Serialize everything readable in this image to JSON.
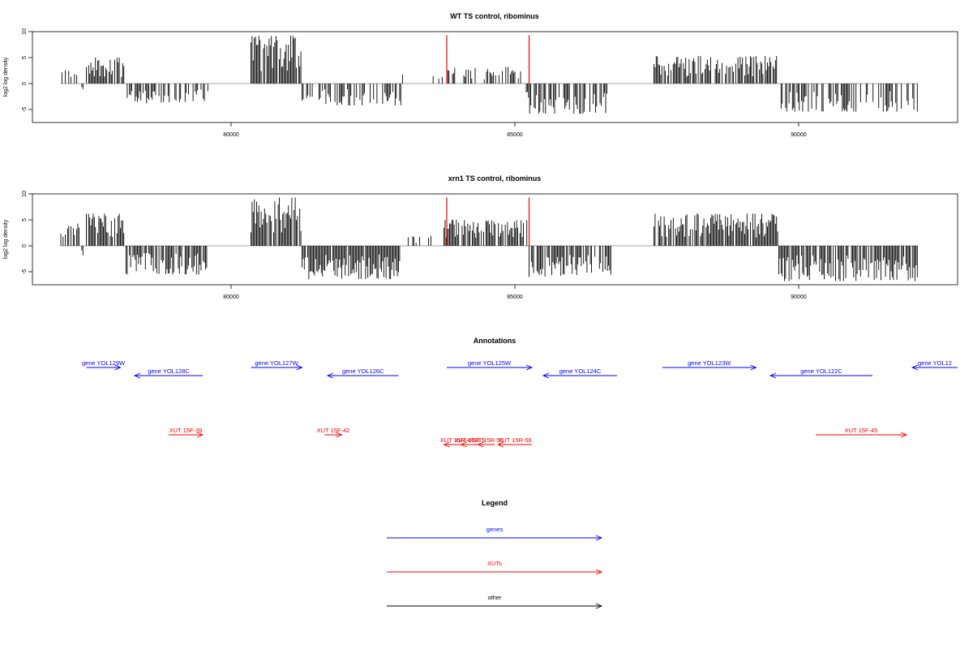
{
  "chart_data": [
    {
      "type": "bar",
      "title": "WT TS control, ribominus",
      "xlabel": "",
      "ylabel": "log2 log density",
      "xlim": [
        76500,
        92800
      ],
      "ylim": [
        -7.5,
        10
      ],
      "xticks": [
        80000,
        85000,
        90000
      ],
      "yticks": [
        -5,
        0,
        5,
        10
      ],
      "xtick_labels": [
        "80000",
        "85000",
        "90000"
      ],
      "ytick_labels": [
        "-5",
        "0",
        "5",
        "10"
      ],
      "baseline_range": [
        77000,
        92100
      ],
      "segments": [
        {
          "from": 77000,
          "to": 77350,
          "sign": 1,
          "max": 2.8,
          "density": 0.35
        },
        {
          "from": 77350,
          "to": 77450,
          "sign": -1,
          "max": 1.6,
          "density": 0.4
        },
        {
          "from": 77450,
          "to": 78150,
          "sign": 1,
          "max": 5.0,
          "density": 0.8
        },
        {
          "from": 78150,
          "to": 79600,
          "sign": -1,
          "max": 3.8,
          "density": 0.55
        },
        {
          "from": 79600,
          "to": 80350,
          "sign": 0,
          "max": 0,
          "density": 0
        },
        {
          "from": 80350,
          "to": 81250,
          "sign": 1,
          "max": 9.2,
          "density": 0.85
        },
        {
          "from": 81250,
          "to": 83000,
          "sign": -1,
          "max": 4.2,
          "density": 0.55
        },
        {
          "from": 83000,
          "to": 83750,
          "sign": 1,
          "max": 1.8,
          "density": 0.15
        },
        {
          "from": 83800,
          "to": 85200,
          "sign": 1,
          "max": 3.2,
          "density": 0.45
        },
        {
          "from": 85200,
          "to": 86650,
          "sign": -1,
          "max": 5.8,
          "density": 0.65
        },
        {
          "from": 86650,
          "to": 87450,
          "sign": 0,
          "max": 0,
          "density": 0
        },
        {
          "from": 87450,
          "to": 89650,
          "sign": 1,
          "max": 5.3,
          "density": 0.75
        },
        {
          "from": 89650,
          "to": 92100,
          "sign": -1,
          "max": 5.4,
          "density": 0.55
        }
      ],
      "highlights": [
        {
          "x": 83800,
          "y": 9.3,
          "color": "#ff0000"
        },
        {
          "x": 85250,
          "y": 9.3,
          "color": "#ff0000"
        }
      ]
    },
    {
      "type": "bar",
      "title": "xrn1 TS control, ribominus",
      "xlabel": "",
      "ylabel": "log2 log density",
      "xlim": [
        76500,
        92800
      ],
      "ylim": [
        -7.5,
        10
      ],
      "xticks": [
        80000,
        85000,
        90000
      ],
      "yticks": [
        -5,
        0,
        5,
        10
      ],
      "xtick_labels": [
        "80000",
        "85000",
        "90000"
      ],
      "ytick_labels": [
        "-5",
        "0",
        "5",
        "10"
      ],
      "baseline_range": [
        77000,
        92100
      ],
      "segments": [
        {
          "from": 77000,
          "to": 77350,
          "sign": 1,
          "max": 4.4,
          "density": 0.6
        },
        {
          "from": 77350,
          "to": 77450,
          "sign": -1,
          "max": 2.0,
          "density": 0.4
        },
        {
          "from": 77450,
          "to": 78150,
          "sign": 1,
          "max": 6.2,
          "density": 0.85
        },
        {
          "from": 78150,
          "to": 79600,
          "sign": -1,
          "max": 5.5,
          "density": 0.8
        },
        {
          "from": 79600,
          "to": 80350,
          "sign": 0,
          "max": 0,
          "density": 0
        },
        {
          "from": 80350,
          "to": 81250,
          "sign": 1,
          "max": 9.3,
          "density": 0.9
        },
        {
          "from": 81250,
          "to": 83000,
          "sign": -1,
          "max": 6.4,
          "density": 0.9
        },
        {
          "from": 83000,
          "to": 83750,
          "sign": 1,
          "max": 2.0,
          "density": 0.2
        },
        {
          "from": 83750,
          "to": 85250,
          "sign": 1,
          "max": 5.0,
          "density": 0.85
        },
        {
          "from": 85250,
          "to": 86700,
          "sign": -1,
          "max": 6.0,
          "density": 0.8
        },
        {
          "from": 86700,
          "to": 87450,
          "sign": 0,
          "max": 0,
          "density": 0
        },
        {
          "from": 87450,
          "to": 89650,
          "sign": 1,
          "max": 6.2,
          "density": 0.9
        },
        {
          "from": 89650,
          "to": 92100,
          "sign": -1,
          "max": 6.8,
          "density": 0.85
        }
      ],
      "highlights": [
        {
          "x": 83800,
          "y": 9.3,
          "color": "#ff0000"
        },
        {
          "x": 85250,
          "y": 9.3,
          "color": "#ff0000"
        }
      ]
    }
  ],
  "annotations": {
    "title": "Annotations",
    "genes_color": "#0000ff",
    "xuts_color": "#ff0000",
    "genes": [
      {
        "label": "gene YOL129W",
        "start": 77450,
        "end": 78050,
        "dir": "+"
      },
      {
        "label": "gene YOL128C",
        "start": 78300,
        "end": 79500,
        "dir": "-"
      },
      {
        "label": "gene YOL127W",
        "start": 80350,
        "end": 81250,
        "dir": "+"
      },
      {
        "label": "gene YOL126C",
        "start": 81700,
        "end": 82950,
        "dir": "-"
      },
      {
        "label": "gene YOL125W",
        "start": 83800,
        "end": 85300,
        "dir": "+"
      },
      {
        "label": "gene YOL124C",
        "start": 85500,
        "end": 86800,
        "dir": "-"
      },
      {
        "label": "gene YOL123W",
        "start": 87600,
        "end": 89250,
        "dir": "+"
      },
      {
        "label": "gene YOL122C",
        "start": 89500,
        "end": 91300,
        "dir": "-"
      },
      {
        "label": "gene YOL12",
        "start": 92000,
        "end": 92800,
        "dir": "-"
      }
    ],
    "xuts": [
      {
        "label": "XUT 15F-39",
        "start": 78900,
        "end": 79500,
        "dir": "+"
      },
      {
        "label": "XUT 15F-42",
        "start": 81650,
        "end": 81950,
        "dir": "+"
      },
      {
        "label": "XUT 15R-4",
        "start": 83750,
        "end": 84150,
        "dir": "-"
      },
      {
        "label": "XUT 15R-5",
        "start": 84050,
        "end": 84350,
        "dir": "-"
      },
      {
        "label": "XUT 15R-55",
        "start": 84350,
        "end": 84650,
        "dir": "-"
      },
      {
        "label": "XUT 15R-56",
        "start": 84700,
        "end": 85300,
        "dir": "-"
      },
      {
        "label": "XUT 15F-45",
        "start": 90300,
        "end": 91900,
        "dir": "+"
      }
    ]
  },
  "legend": {
    "title": "Legend",
    "items": [
      {
        "label": "genes",
        "color": "#0000ff"
      },
      {
        "label": "XUTs",
        "color": "#ff0000"
      },
      {
        "label": "other",
        "color": "#000000"
      }
    ]
  }
}
